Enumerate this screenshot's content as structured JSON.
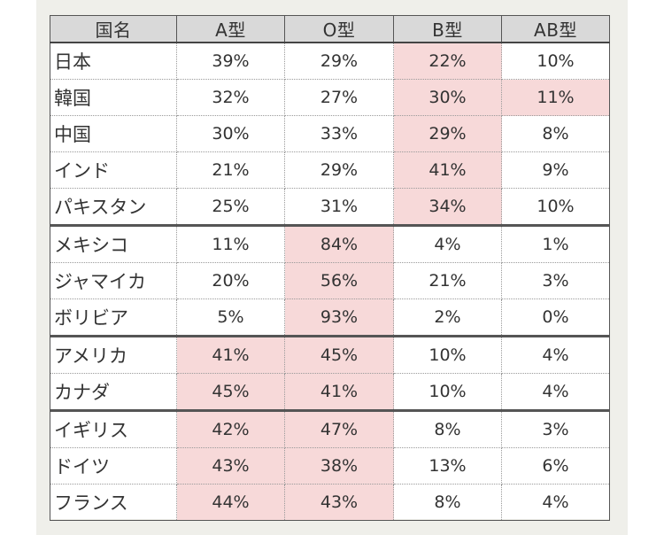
{
  "table": {
    "headers": [
      "国名",
      "A型",
      "O型",
      "B型",
      "AB型"
    ],
    "rows": [
      {
        "country": "日本",
        "values": [
          "39%",
          "29%",
          "22%",
          "10%"
        ],
        "highlight": [
          false,
          false,
          true,
          false
        ],
        "group_end": false
      },
      {
        "country": "韓国",
        "values": [
          "32%",
          "27%",
          "30%",
          "11%"
        ],
        "highlight": [
          false,
          false,
          true,
          true
        ],
        "group_end": false
      },
      {
        "country": "中国",
        "values": [
          "30%",
          "33%",
          "29%",
          "8%"
        ],
        "highlight": [
          false,
          false,
          true,
          false
        ],
        "group_end": false
      },
      {
        "country": "インド",
        "values": [
          "21%",
          "29%",
          "41%",
          "9%"
        ],
        "highlight": [
          false,
          false,
          true,
          false
        ],
        "group_end": false
      },
      {
        "country": "パキスタン",
        "values": [
          "25%",
          "31%",
          "34%",
          "10%"
        ],
        "highlight": [
          false,
          false,
          true,
          false
        ],
        "group_end": true
      },
      {
        "country": "メキシコ",
        "values": [
          "11%",
          "84%",
          "4%",
          "1%"
        ],
        "highlight": [
          false,
          true,
          false,
          false
        ],
        "group_end": false
      },
      {
        "country": "ジャマイカ",
        "values": [
          "20%",
          "56%",
          "21%",
          "3%"
        ],
        "highlight": [
          false,
          true,
          false,
          false
        ],
        "group_end": false
      },
      {
        "country": "ボリビア",
        "values": [
          "5%",
          "93%",
          "2%",
          "0%"
        ],
        "highlight": [
          false,
          true,
          false,
          false
        ],
        "group_end": true
      },
      {
        "country": "アメリカ",
        "values": [
          "41%",
          "45%",
          "10%",
          "4%"
        ],
        "highlight": [
          true,
          true,
          false,
          false
        ],
        "group_end": false
      },
      {
        "country": "カナダ",
        "values": [
          "45%",
          "41%",
          "10%",
          "4%"
        ],
        "highlight": [
          true,
          true,
          false,
          false
        ],
        "group_end": true
      },
      {
        "country": "イギリス",
        "values": [
          "42%",
          "47%",
          "8%",
          "3%"
        ],
        "highlight": [
          true,
          true,
          false,
          false
        ],
        "group_end": false
      },
      {
        "country": "ドイツ",
        "values": [
          "43%",
          "38%",
          "13%",
          "6%"
        ],
        "highlight": [
          true,
          true,
          false,
          false
        ],
        "group_end": false
      },
      {
        "country": "フランス",
        "values": [
          "44%",
          "43%",
          "8%",
          "4%"
        ],
        "highlight": [
          true,
          true,
          false,
          false
        ],
        "group_end": false
      }
    ]
  },
  "colors": {
    "highlight": "#f7d9d9",
    "header_bg": "#d9d9d9",
    "panel_bg": "#efefea"
  }
}
